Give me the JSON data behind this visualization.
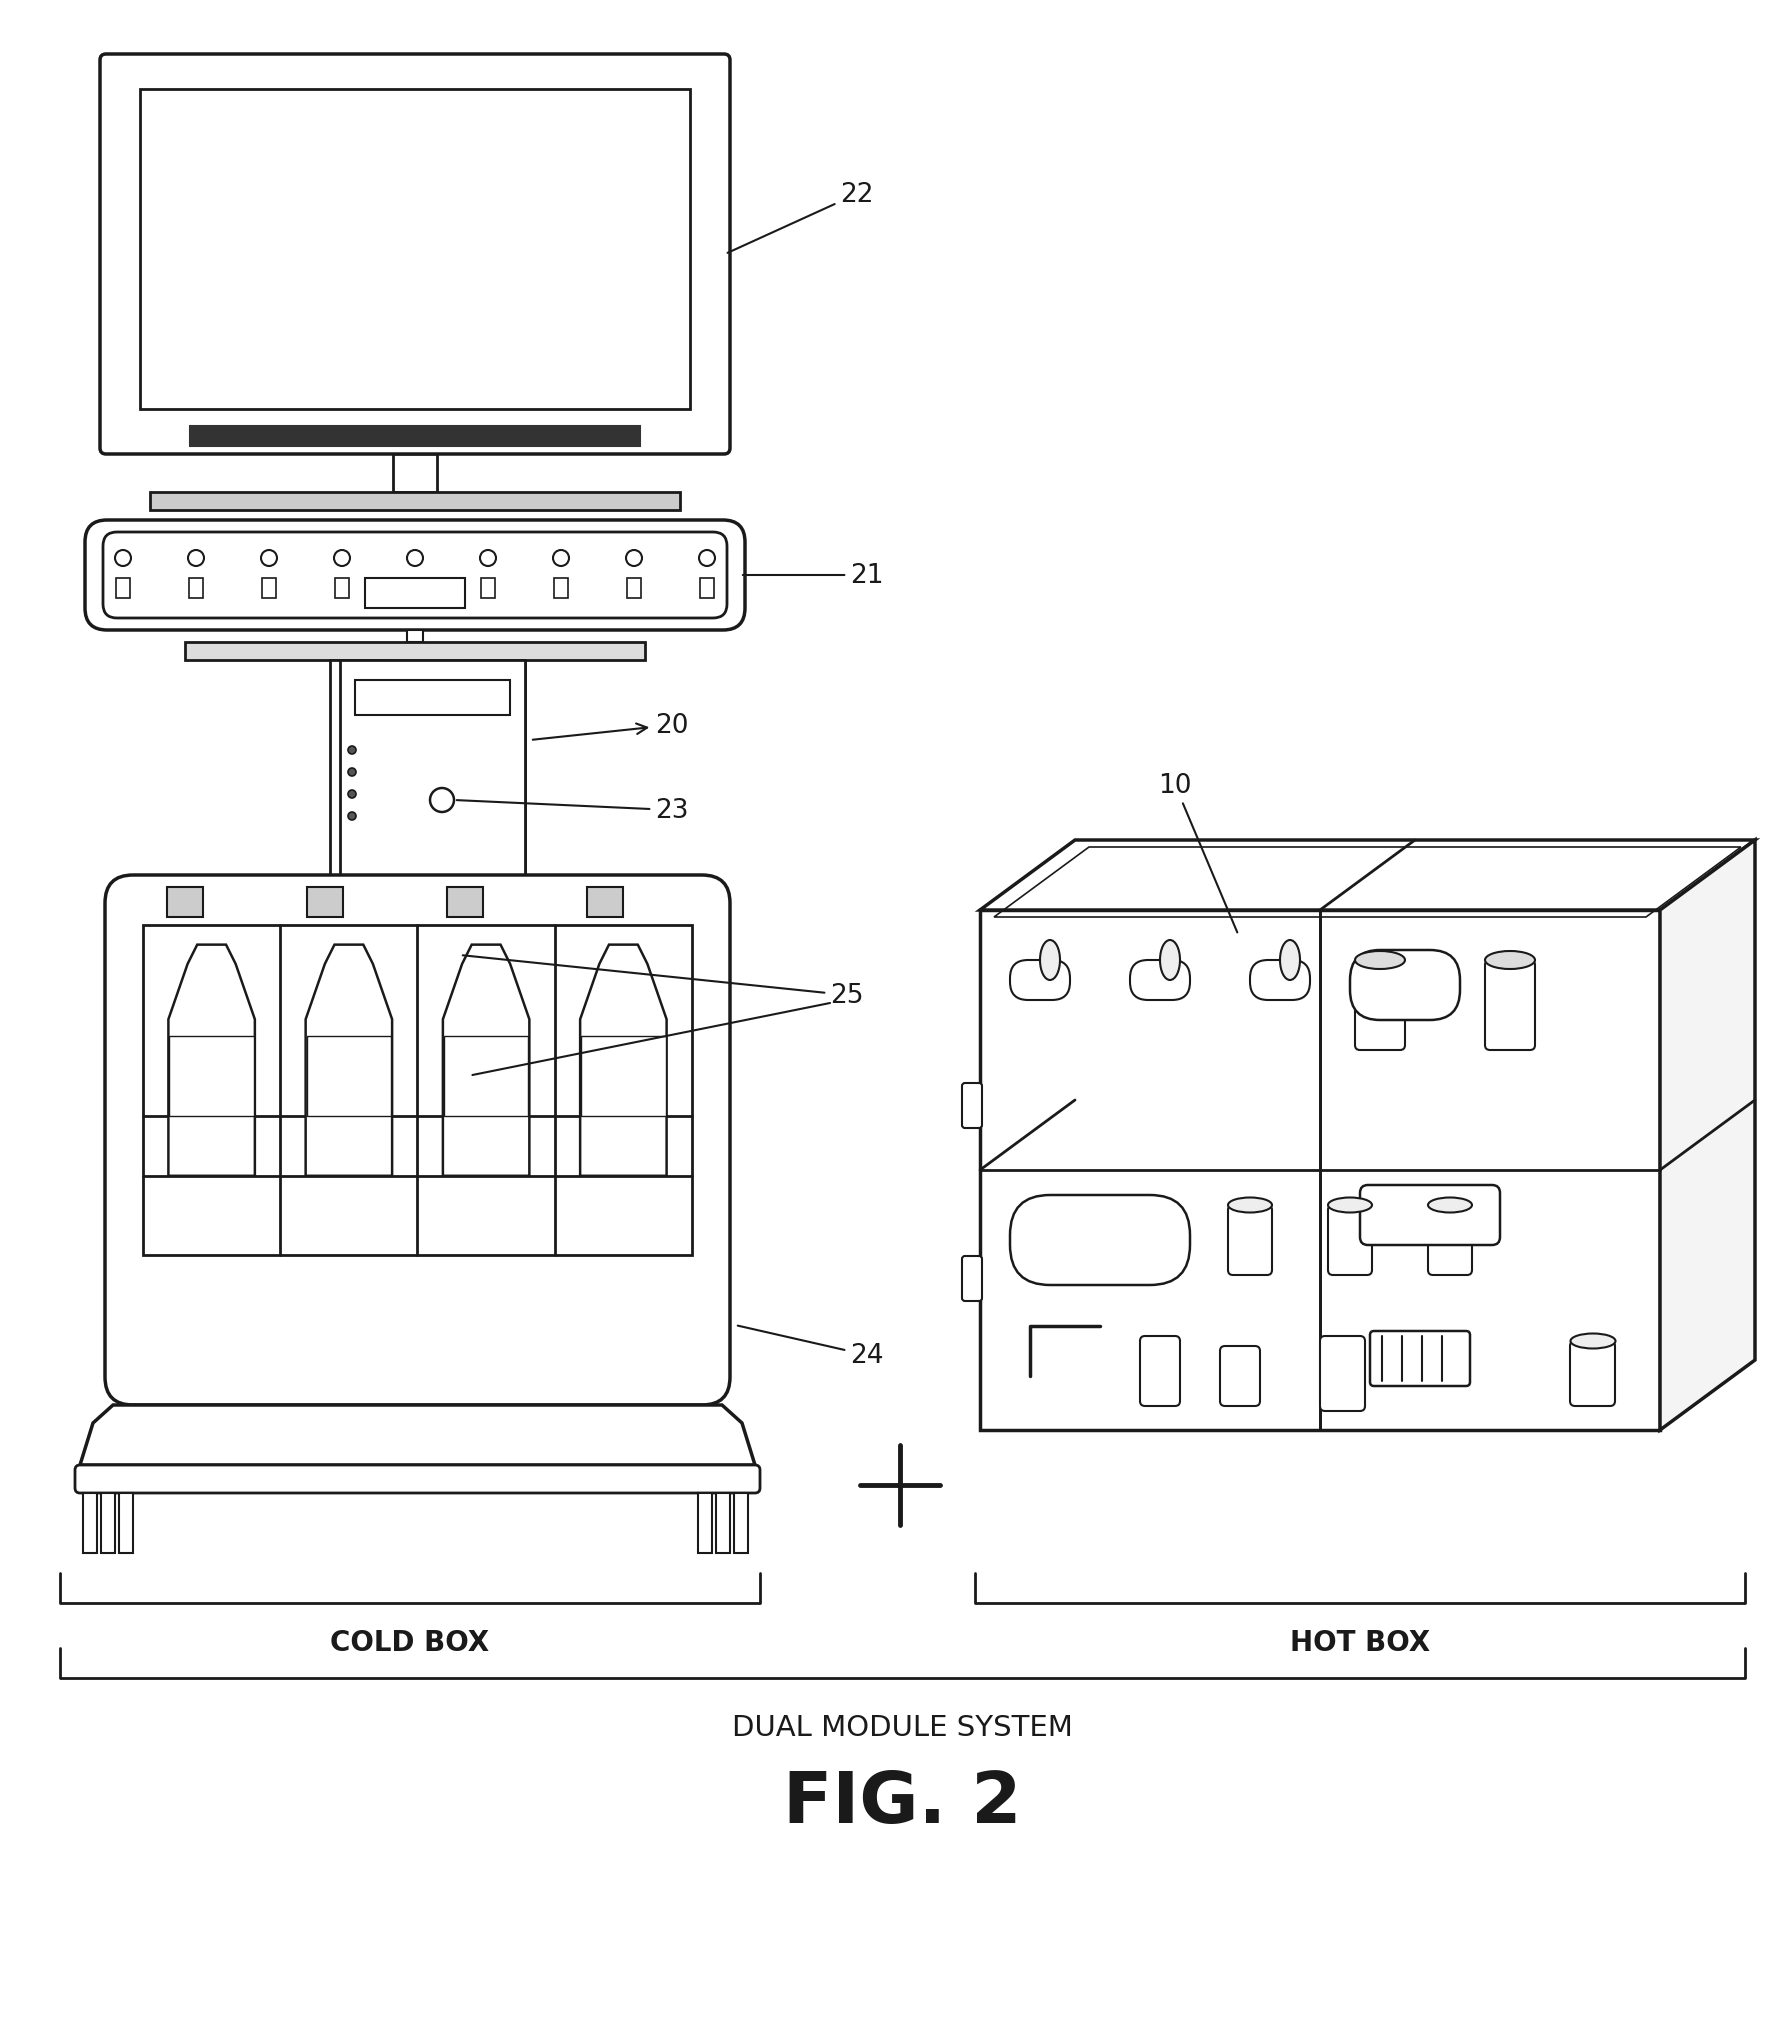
{
  "bg_color": "#ffffff",
  "line_color": "#1a1a1a",
  "fig_label": "FIG. 2",
  "subtitle": "DUAL MODULE SYSTEM",
  "cold_box_label": "COLD BOX",
  "hot_box_label": "HOT BOX",
  "lw_main": 2.0,
  "lw_thick": 2.5,
  "lw_thin": 1.3
}
